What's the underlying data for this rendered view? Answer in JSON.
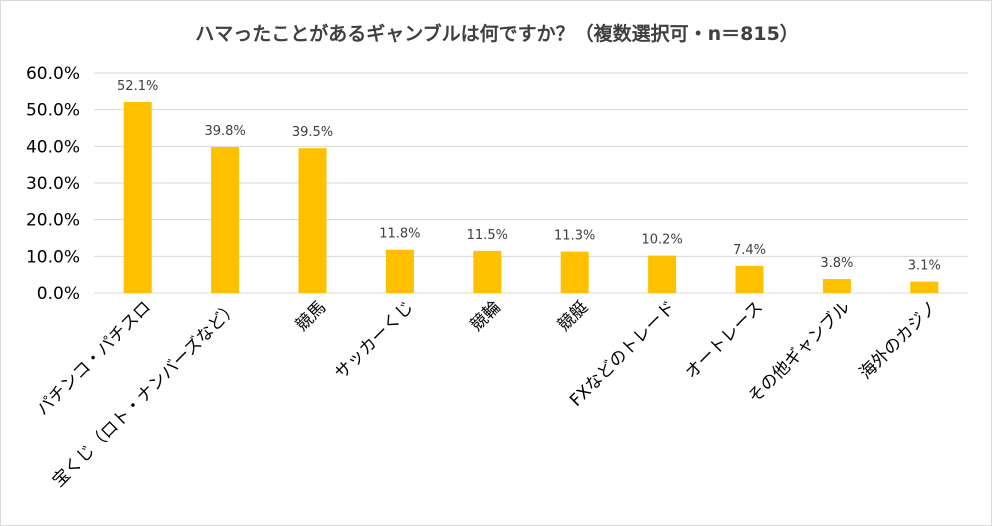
{
  "chart_data": {
    "type": "bar",
    "title": "ハマったことがあるギャンブルは何ですか？（複数選択可・n＝815）",
    "categories": [
      "パチンコ・パチスロ",
      "宝くじ（ロト・ナンバーズなど）",
      "競馬",
      "サッカーくじ",
      "競輪",
      "競艇",
      "FXなどのトレード",
      "オートレース",
      "その他ギャンブル",
      "海外のカジノ"
    ],
    "values": [
      52.1,
      39.8,
      39.5,
      11.8,
      11.5,
      11.3,
      10.2,
      7.4,
      3.8,
      3.1
    ],
    "data_labels": [
      "52.1%",
      "39.8%",
      "39.5%",
      "11.8%",
      "11.5%",
      "11.3%",
      "10.2%",
      "7.4%",
      "3.8%",
      "3.1%"
    ],
    "yticks": [
      "0.0%",
      "10.0%",
      "20.0%",
      "30.0%",
      "40.0%",
      "50.0%",
      "60.0%"
    ],
    "ylim": [
      0,
      60
    ],
    "xlabel": "",
    "ylabel": "",
    "grid": true,
    "legend": "none",
    "bar_color": "#FFC000"
  }
}
